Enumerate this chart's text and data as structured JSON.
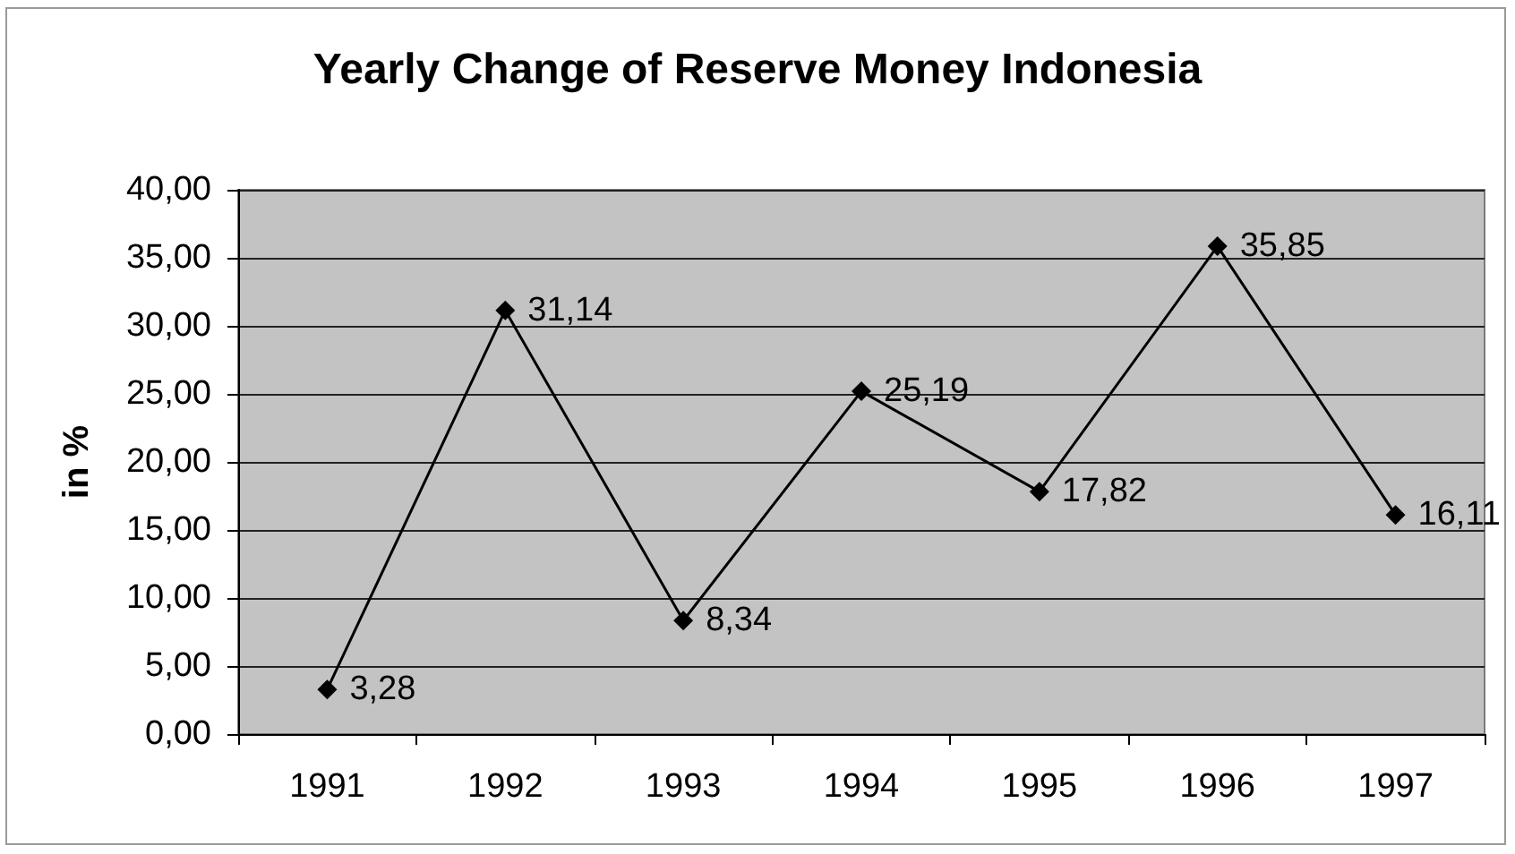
{
  "chart_data": {
    "type": "line",
    "title": "Yearly Change of Reserve Money Indonesia",
    "ylabel": "in %",
    "categories": [
      "1991",
      "1992",
      "1993",
      "1994",
      "1995",
      "1996",
      "1997"
    ],
    "values": [
      3.28,
      31.14,
      8.34,
      25.19,
      17.82,
      35.85,
      16.11
    ],
    "value_labels": [
      "3,28",
      "31,14",
      "8,34",
      "25,19",
      "17,82",
      "35,85",
      "16,11"
    ],
    "color": "#000000",
    "ylim": [
      0,
      40
    ],
    "yticks": [
      {
        "value": 0,
        "label": "0,00"
      },
      {
        "value": 5,
        "label": "5,00"
      },
      {
        "value": 10,
        "label": "10,00"
      },
      {
        "value": 15,
        "label": "15,00"
      },
      {
        "value": 20,
        "label": "20,00"
      },
      {
        "value": 25,
        "label": "25,00"
      },
      {
        "value": 30,
        "label": "30,00"
      },
      {
        "value": 35,
        "label": "35,00"
      },
      {
        "value": 40,
        "label": "40,00"
      }
    ],
    "grid": "y",
    "marker": "diamond",
    "line_style": "solid"
  }
}
